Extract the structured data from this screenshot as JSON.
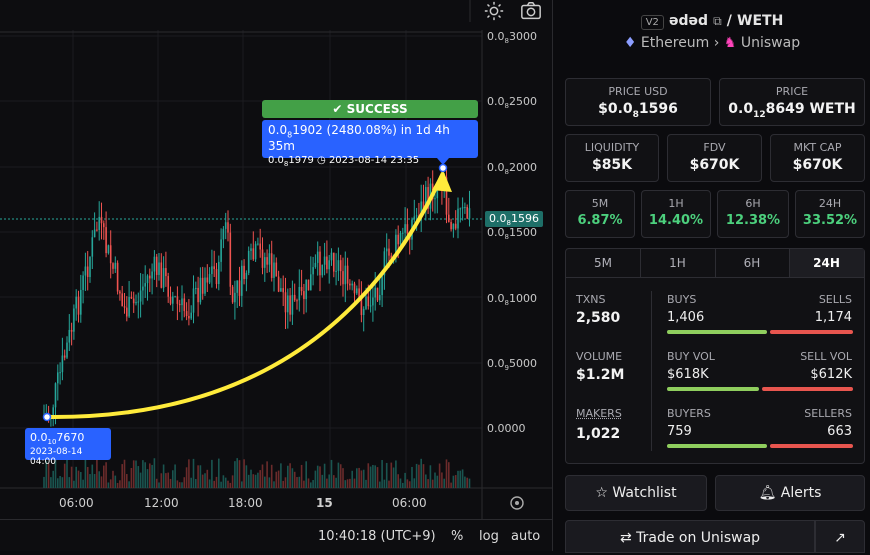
{
  "pair": {
    "version": "V2",
    "token": "ədəd",
    "quote": "WETH",
    "chain": "Ethereum",
    "dex": "Uniswap"
  },
  "prices": {
    "price_usd_label": "PRICE USD",
    "price_usd_prefix": "$0.0",
    "price_usd_sub": "8",
    "price_usd_rest": "1596",
    "price_label": "PRICE",
    "price_prefix": "0.0",
    "price_sub": "12",
    "price_rest": "8649 WETH"
  },
  "metrics": [
    {
      "label": "LIQUIDITY",
      "value": "$85K"
    },
    {
      "label": "FDV",
      "value": "$670K"
    },
    {
      "label": "MKT CAP",
      "value": "$670K"
    }
  ],
  "changes": [
    {
      "label": "5M",
      "value": "6.87%"
    },
    {
      "label": "1H",
      "value": "14.40%"
    },
    {
      "label": "6H",
      "value": "12.38%"
    },
    {
      "label": "24H",
      "value": "33.52%"
    }
  ],
  "tabs": [
    "5M",
    "1H",
    "6H",
    "24H"
  ],
  "stats": {
    "txns_label": "TXNS",
    "txns": "2,580",
    "buys_label": "BUYS",
    "buys": "1,406",
    "sells_label": "SELLS",
    "sells": "1,174",
    "volume_label": "VOLUME",
    "volume": "$1.2M",
    "buyvol_label": "BUY VOL",
    "buyvol": "$618K",
    "sellvol_label": "SELL VOL",
    "sellvol": "$612K",
    "makers_label": "MAKERS",
    "makers": "1,022",
    "buyers_label": "BUYERS",
    "buyers": "759",
    "sellers_label": "SELLERS",
    "sellers": "663"
  },
  "buttons": {
    "watchlist": "Watchlist",
    "alerts": "Alerts",
    "trade": "Trade on Uniswap"
  },
  "chart": {
    "y_ticks": [
      {
        "pre": "0.0",
        "sub": "8",
        "post": "3000"
      },
      {
        "pre": "0.0",
        "sub": "8",
        "post": "2500"
      },
      {
        "pre": "0.0",
        "sub": "8",
        "post": "2000"
      },
      {
        "pre": "0.0",
        "sub": "8",
        "post": "1500"
      },
      {
        "pre": "0.0",
        "sub": "8",
        "post": "1000"
      },
      {
        "pre": "0.0",
        "sub": "9",
        "post": "5000"
      },
      {
        "pre": "",
        "sub": "",
        "post": "0.0000"
      }
    ],
    "x_ticks": [
      "06:00",
      "12:00",
      "18:00",
      "15",
      "06:00"
    ],
    "current_price": {
      "pre": "0.0",
      "sub": "8",
      "post": "1596"
    },
    "success_label": "✔ SUCCESS",
    "gain_line": {
      "pre": "0.0",
      "sub": "8",
      "post": "1902 (2480.08%) in 1d 4h 35m"
    },
    "gain_sub": {
      "pre": "0.0",
      "sub": "8",
      "post": "1979",
      "date": "2023-08-14  23:35"
    },
    "start_line": {
      "pre": "0.0",
      "sub": "10",
      "post": "7670"
    },
    "start_date": "2023-08-14 04:00",
    "accent": "#2962ff",
    "up": "#26a69a",
    "down": "#ef5350",
    "arrow": "#ffeb3b"
  },
  "bottom": {
    "time": "10:40:18 (UTC+9)",
    "pct": "%",
    "log": "log",
    "auto": "auto"
  }
}
